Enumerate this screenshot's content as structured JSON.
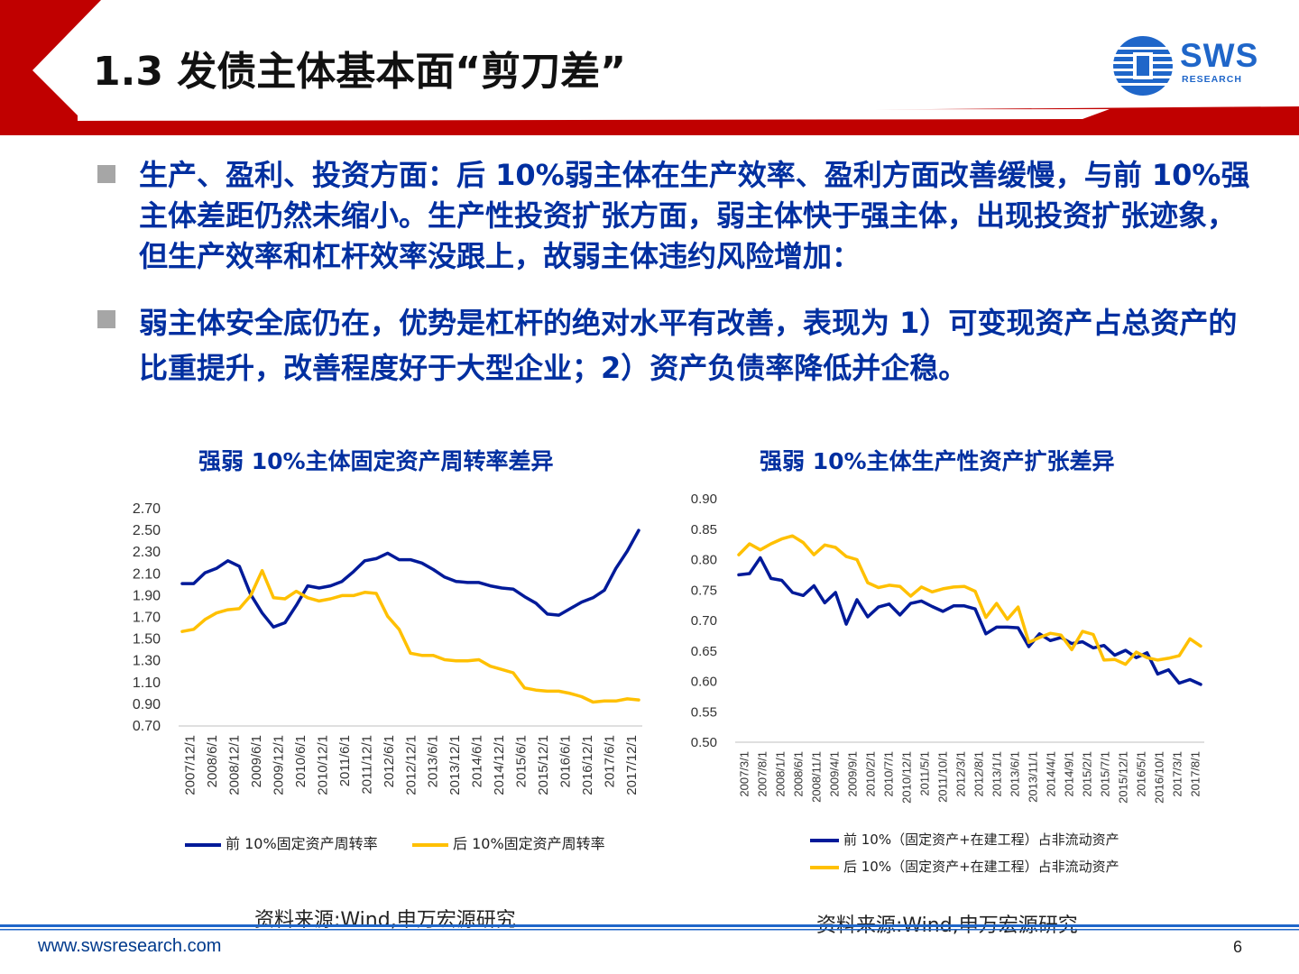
{
  "slide": {
    "title": "1.3 发债主体基本面“剪刀差”",
    "logo": {
      "main": "SWS",
      "sub": "RESEARCH"
    },
    "bullets": [
      "生产、盈利、投资方面：后 10%弱主体在生产效率、盈利方面改善缓慢，与前 10%强主体差距仍然未缩小。生产性投资扩张方面，弱主体快于强主体，出现投资扩张迹象，但生产效率和杠杆效率没跟上，故弱主体违约风险增加：",
      "弱主体安全底仍在，优势是杠杆的绝对水平有改善，表现为 1）可变现资产占总资产的比重提升，改善程度好于大型企业；2）资产负债率降低并企稳。"
    ],
    "footer": {
      "url": "www.swsresearch.com",
      "page": "6"
    },
    "colors": {
      "navy": "#001a99",
      "yellow": "#ffc000",
      "red": "#c00000",
      "blue_text": "#002fa0"
    }
  },
  "chart_data": [
    {
      "type": "line",
      "title": "强弱 10%主体固定资产周转率差异",
      "source": "资料来源:Wind,申万宏源研究",
      "ylim": [
        0.7,
        2.7
      ],
      "yticks": [
        "2.70",
        "2.50",
        "2.30",
        "2.10",
        "1.90",
        "1.70",
        "1.50",
        "1.30",
        "1.10",
        "0.90",
        "0.70"
      ],
      "xticks": [
        "2007/12/1",
        "2008/6/1",
        "2008/12/1",
        "2009/6/1",
        "2009/12/1",
        "2010/6/1",
        "2010/12/1",
        "2011/6/1",
        "2011/12/1",
        "2012/6/1",
        "2012/12/1",
        "2013/6/1",
        "2013/12/1",
        "2014/6/1",
        "2014/12/1",
        "2015/6/1",
        "2015/12/1",
        "2016/6/1",
        "2016/12/1",
        "2017/6/1",
        "2017/12/1"
      ],
      "series": [
        {
          "name": "前 10%固定资产周转率",
          "color": "#001a99",
          "values": [
            2.01,
            2.01,
            2.11,
            2.15,
            2.22,
            2.17,
            1.91,
            1.74,
            1.61,
            1.65,
            1.81,
            1.99,
            1.97,
            1.99,
            2.03,
            2.12,
            2.22,
            2.24,
            2.29,
            2.23,
            2.23,
            2.2,
            2.14,
            2.07,
            2.03,
            2.02,
            2.02,
            1.99,
            1.97,
            1.96,
            1.89,
            1.83,
            1.73,
            1.72,
            1.78,
            1.84,
            1.88,
            1.95,
            2.15,
            2.31,
            2.5
          ]
        },
        {
          "name": "后 10%固定资产周转率",
          "color": "#ffc000",
          "values": [
            1.57,
            1.59,
            1.68,
            1.74,
            1.77,
            1.78,
            1.9,
            2.13,
            1.88,
            1.87,
            1.94,
            1.88,
            1.85,
            1.87,
            1.9,
            1.9,
            1.93,
            1.92,
            1.71,
            1.59,
            1.37,
            1.35,
            1.35,
            1.31,
            1.3,
            1.3,
            1.31,
            1.25,
            1.22,
            1.19,
            1.05,
            1.03,
            1.02,
            1.02,
            1.0,
            0.97,
            0.92,
            0.93,
            0.93,
            0.95,
            0.94
          ]
        }
      ]
    },
    {
      "type": "line",
      "title": "强弱 10%主体生产性资产扩张差异",
      "source": "资料来源:Wind,申万宏源研究",
      "ylim": [
        0.5,
        0.9
      ],
      "yticks": [
        "0.90",
        "0.85",
        "0.80",
        "0.75",
        "0.70",
        "0.65",
        "0.60",
        "0.55",
        "0.50"
      ],
      "xticks": [
        "2007/3/1",
        "2007/8/1",
        "2008/1/1",
        "2008/6/1",
        "2008/11/1",
        "2009/4/1",
        "2009/9/1",
        "2010/2/1",
        "2010/7/1",
        "2010/12/1",
        "2011/5/1",
        "2011/10/1",
        "2012/3/1",
        "2012/8/1",
        "2013/1/1",
        "2013/6/1",
        "2013/11/1",
        "2014/4/1",
        "2014/9/1",
        "2015/2/1",
        "2015/7/1",
        "2015/12/1",
        "2016/5/1",
        "2016/10/1",
        "2017/3/1",
        "2017/8/1"
      ],
      "series": [
        {
          "name": "前 10%（固定资产+在建工程）占非流动资产",
          "color": "#001a99",
          "values": [
            0.775,
            0.777,
            0.803,
            0.769,
            0.766,
            0.746,
            0.741,
            0.757,
            0.729,
            0.746,
            0.694,
            0.734,
            0.706,
            0.722,
            0.727,
            0.709,
            0.728,
            0.732,
            0.723,
            0.715,
            0.724,
            0.724,
            0.719,
            0.678,
            0.689,
            0.689,
            0.688,
            0.657,
            0.678,
            0.667,
            0.672,
            0.662,
            0.665,
            0.655,
            0.659,
            0.643,
            0.651,
            0.639,
            0.647,
            0.612,
            0.619,
            0.597,
            0.603,
            0.595
          ]
        },
        {
          "name": "后 10%（固定资产+在建工程）占非流动资产",
          "color": "#ffc000",
          "values": [
            0.808,
            0.826,
            0.816,
            0.826,
            0.834,
            0.839,
            0.828,
            0.808,
            0.824,
            0.82,
            0.805,
            0.8,
            0.762,
            0.754,
            0.758,
            0.756,
            0.74,
            0.755,
            0.747,
            0.752,
            0.755,
            0.756,
            0.748,
            0.705,
            0.728,
            0.702,
            0.722,
            0.664,
            0.672,
            0.679,
            0.676,
            0.652,
            0.682,
            0.677,
            0.635,
            0.636,
            0.628,
            0.648,
            0.639,
            0.635,
            0.638,
            0.642,
            0.67,
            0.658
          ]
        }
      ]
    }
  ]
}
